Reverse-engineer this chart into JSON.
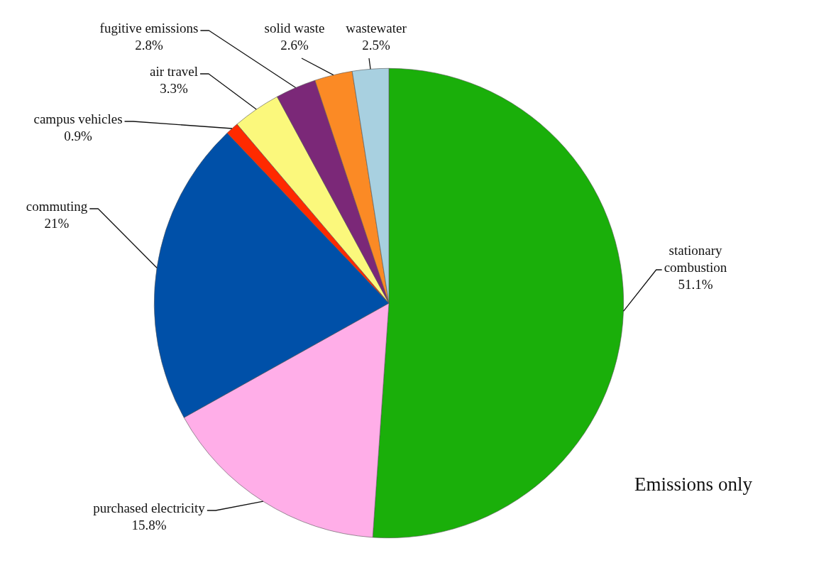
{
  "chart_data": {
    "type": "pie",
    "categories": [
      "stationary combustion",
      "purchased electricity",
      "commuting",
      "campus vehicles",
      "air travel",
      "fugitive emissions",
      "solid waste",
      "wastewater"
    ],
    "values": [
      51.1,
      15.8,
      21,
      0.9,
      3.3,
      2.8,
      2.6,
      2.5
    ],
    "colors": [
      "#1aaf0a",
      "#ffaee8",
      "#0050a8",
      "#ff2a00",
      "#fbf87c",
      "#7b2878",
      "#fb8a25",
      "#a8d0e0"
    ],
    "value_labels": [
      "51.1%",
      "15.8%",
      "21%",
      "0.9%",
      "3.3%",
      "2.8%",
      "2.6%",
      "2.5%"
    ],
    "annotations": [
      "Emissions only"
    ]
  }
}
